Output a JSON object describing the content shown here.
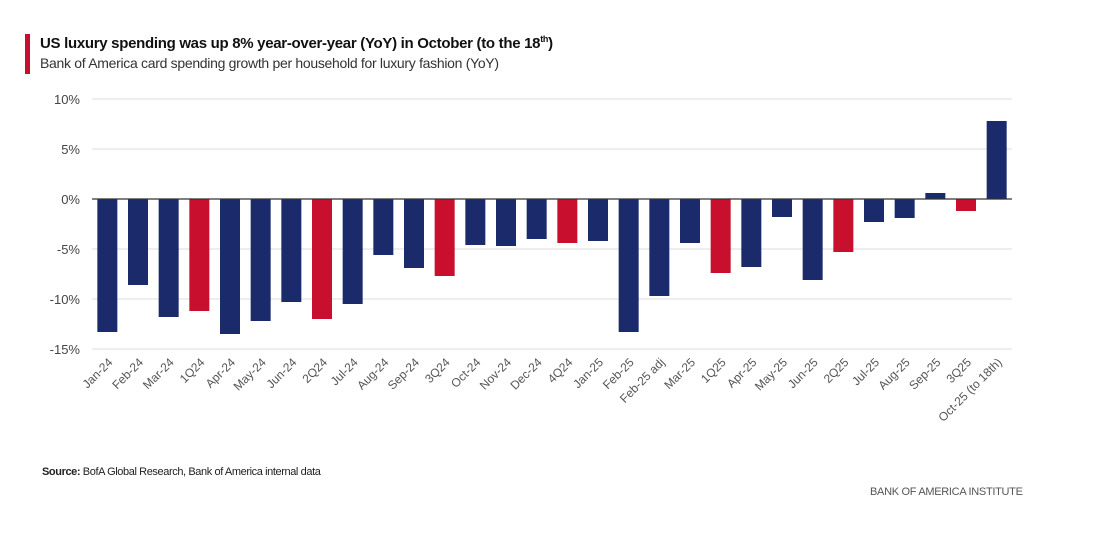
{
  "title": "US luxury spending was up 8% year-over-year (YoY) in October (to the 18",
  "title_sup": "th",
  "title_end": ")",
  "subtitle": "Bank of America card spending growth per household for luxury fashion (YoY)",
  "source_label": "Source:",
  "source_text": " BofA Global Research, Bank of America internal data",
  "brand": "BANK OF AMERICA INSTITUTE",
  "colors": {
    "monthly": "#1b2a6b",
    "quarterly": "#c8102e",
    "accent": "#c8102e"
  },
  "chart_data": {
    "type": "bar",
    "ylabel": "",
    "xlabel": "",
    "ylim": [
      -15,
      10
    ],
    "yticks": [
      10,
      5,
      0,
      -5,
      -10,
      -15
    ],
    "ytick_labels": [
      "10%",
      "5%",
      "0%",
      "-5%",
      "-10%",
      "-15%"
    ],
    "grid": true,
    "categories": [
      "Jan-24",
      "Feb-24",
      "Mar-24",
      "1Q24",
      "Apr-24",
      "May-24",
      "Jun-24",
      "2Q24",
      "Jul-24",
      "Aug-24",
      "Sep-24",
      "3Q24",
      "Oct-24",
      "Nov-24",
      "Dec-24",
      "4Q24",
      "Jan-25",
      "Feb-25",
      "Feb-25 adj",
      "Mar-25",
      "1Q25",
      "Apr-25",
      "May-25",
      "Jun-25",
      "2Q25",
      "Jul-25",
      "Aug-25",
      "Sep-25",
      "3Q25",
      "Oct-25 (to 18th)"
    ],
    "values": [
      -13.3,
      -8.6,
      -11.8,
      -11.2,
      -13.5,
      -12.2,
      -10.3,
      -12.0,
      -10.5,
      -5.6,
      -6.9,
      -7.7,
      -4.6,
      -4.7,
      -4.0,
      -4.4,
      -4.2,
      -13.3,
      -9.7,
      -4.4,
      -7.4,
      -6.8,
      -1.8,
      -8.1,
      -5.3,
      -2.3,
      -1.9,
      0.6,
      -1.2,
      7.8
    ],
    "is_quarterly": [
      false,
      false,
      false,
      true,
      false,
      false,
      false,
      true,
      false,
      false,
      false,
      true,
      false,
      false,
      false,
      true,
      false,
      false,
      false,
      false,
      true,
      false,
      false,
      false,
      true,
      false,
      false,
      false,
      true,
      false
    ]
  }
}
